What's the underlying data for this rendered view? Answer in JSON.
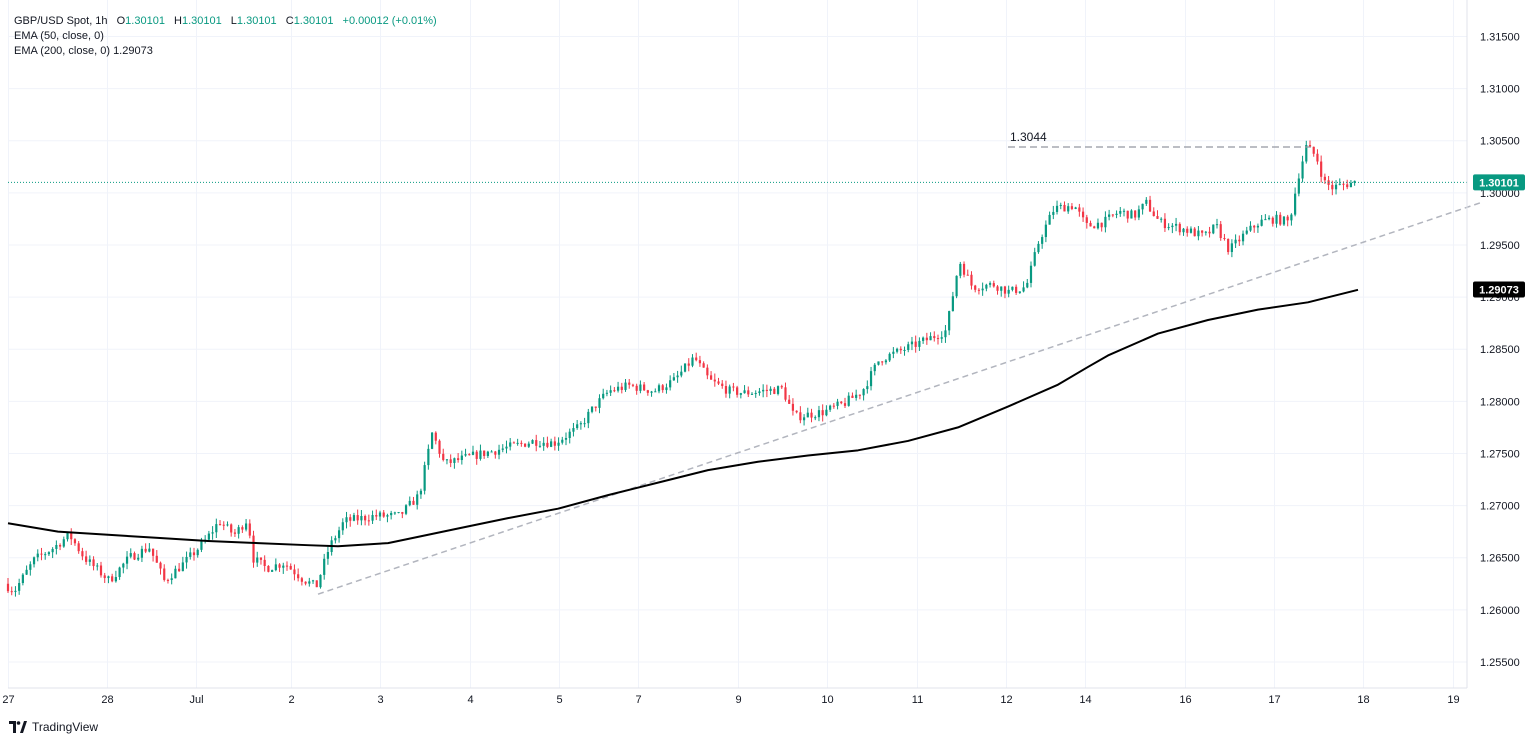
{
  "header": {
    "symbol": "GBP/USD Spot, 1h",
    "o_label": "O",
    "o_value": "1.30101",
    "h_label": "H",
    "h_value": "1.30101",
    "l_label": "L",
    "l_value": "1.30101",
    "c_label": "C",
    "c_value": "1.30101",
    "change": "+0.00012 (+0.01%)",
    "ema50_label": "EMA (50, close, 0)",
    "ema200_label": "EMA (200, close, 0)",
    "ema200_value": "1.29073"
  },
  "brand": {
    "name": "TradingView",
    "icon": "tradingview-logo-icon"
  },
  "colors": {
    "up": "#089981",
    "down": "#f23645",
    "ema": "#000000",
    "trendline": "#b2b5be",
    "price_line": "#089981",
    "grid": "#f0f3fa"
  },
  "chart_data": {
    "type": "candlestick",
    "symbol": "GBP/USD Spot",
    "interval": "1h",
    "y_range": [
      1.2525,
      1.3185
    ],
    "y_ticks": [
      "1.25500",
      "1.26000",
      "1.26500",
      "1.27000",
      "1.27500",
      "1.28000",
      "1.28500",
      "1.29000",
      "1.29500",
      "1.30000",
      "1.30500",
      "1.31000",
      "1.31500"
    ],
    "x_ticks": [
      {
        "label": "27",
        "t": 0.5
      },
      {
        "label": "28",
        "t": 99.5
      },
      {
        "label": "Jul",
        "t": 188.5
      },
      {
        "label": "2",
        "t": 283.5
      },
      {
        "label": "3",
        "t": 372.5
      },
      {
        "label": "4",
        "t": 462.5
      },
      {
        "label": "5",
        "t": 551.5
      },
      {
        "label": "7",
        "t": 630.5
      },
      {
        "label": "9",
        "t": 730.5
      },
      {
        "label": "10",
        "t": 819.5
      },
      {
        "label": "11",
        "t": 909.5
      },
      {
        "label": "12",
        "t": 998.5
      },
      {
        "label": "14",
        "t": 1077.5
      },
      {
        "label": "16",
        "t": 1177.5
      },
      {
        "label": "17",
        "t": 1266.5
      },
      {
        "label": "18",
        "t": 1355.5
      },
      {
        "label": "19",
        "t": 1445.5
      }
    ],
    "last_price": {
      "value": 1.30101,
      "label": "1.30101"
    },
    "ema200_last": {
      "value": 1.29073,
      "label": "1.29073"
    },
    "resistance": {
      "value": 1.3044,
      "label": "1.3044",
      "t_start": 1000,
      "t_end": 1303
    },
    "trendline": {
      "t_start": 310,
      "v_start": 1.2615,
      "t_end": 1474,
      "v_end": 1.2991
    },
    "price_path": [
      [
        0,
        1.2625
      ],
      [
        10,
        1.2618
      ],
      [
        30,
        1.2648
      ],
      [
        50,
        1.266
      ],
      [
        65,
        1.2672
      ],
      [
        80,
        1.265
      ],
      [
        105,
        1.2628
      ],
      [
        125,
        1.265
      ],
      [
        145,
        1.266
      ],
      [
        160,
        1.2628
      ],
      [
        180,
        1.2645
      ],
      [
        200,
        1.2665
      ],
      [
        215,
        1.2685
      ],
      [
        230,
        1.2672
      ],
      [
        244,
        1.2688
      ],
      [
        248,
        1.265
      ],
      [
        262,
        1.264
      ],
      [
        280,
        1.2645
      ],
      [
        298,
        1.263
      ],
      [
        312,
        1.2622
      ],
      [
        325,
        1.266
      ],
      [
        340,
        1.2685
      ],
      [
        370,
        1.269
      ],
      [
        395,
        1.269
      ],
      [
        415,
        1.271
      ],
      [
        428,
        1.277
      ],
      [
        440,
        1.274
      ],
      [
        470,
        1.2748
      ],
      [
        500,
        1.2755
      ],
      [
        530,
        1.2762
      ],
      [
        550,
        1.276
      ],
      [
        575,
        1.2775
      ],
      [
        590,
        1.2795
      ],
      [
        605,
        1.281
      ],
      [
        625,
        1.2815
      ],
      [
        650,
        1.281
      ],
      [
        670,
        1.282
      ],
      [
        690,
        1.2842
      ],
      [
        705,
        1.282
      ],
      [
        725,
        1.281
      ],
      [
        740,
        1.2808
      ],
      [
        760,
        1.281
      ],
      [
        778,
        1.2812
      ],
      [
        790,
        1.2785
      ],
      [
        820,
        1.279
      ],
      [
        840,
        1.2798
      ],
      [
        858,
        1.281
      ],
      [
        875,
        1.284
      ],
      [
        900,
        1.285
      ],
      [
        920,
        1.2858
      ],
      [
        942,
        1.2868
      ],
      [
        955,
        1.2935
      ],
      [
        968,
        1.291
      ],
      [
        990,
        1.2912
      ],
      [
        1005,
        1.2905
      ],
      [
        1022,
        1.291
      ],
      [
        1035,
        1.2955
      ],
      [
        1050,
        1.2985
      ],
      [
        1070,
        1.2988
      ],
      [
        1082,
        1.2968
      ],
      [
        1100,
        1.2972
      ],
      [
        1115,
        1.2982
      ],
      [
        1130,
        1.2978
      ],
      [
        1142,
        1.299
      ],
      [
        1155,
        1.2972
      ],
      [
        1180,
        1.2965
      ],
      [
        1200,
        1.2958
      ],
      [
        1212,
        1.2968
      ],
      [
        1225,
        1.2945
      ],
      [
        1240,
        1.296
      ],
      [
        1255,
        1.2972
      ],
      [
        1270,
        1.2975
      ],
      [
        1285,
        1.2972
      ],
      [
        1295,
        1.302
      ],
      [
        1302,
        1.3044
      ],
      [
        1312,
        1.3035
      ],
      [
        1320,
        1.301
      ],
      [
        1328,
        1.3005
      ],
      [
        1340,
        1.3008
      ],
      [
        1350,
        1.301
      ]
    ],
    "ema200_path": [
      [
        0,
        1.2683
      ],
      [
        50,
        1.2675
      ],
      [
        100,
        1.2672
      ],
      [
        150,
        1.2669
      ],
      [
        200,
        1.2666
      ],
      [
        250,
        1.2664
      ],
      [
        300,
        1.2662
      ],
      [
        330,
        1.2661
      ],
      [
        380,
        1.2664
      ],
      [
        410,
        1.267
      ],
      [
        450,
        1.2678
      ],
      [
        500,
        1.2688
      ],
      [
        550,
        1.2697
      ],
      [
        600,
        1.271
      ],
      [
        650,
        1.2722
      ],
      [
        700,
        1.2734
      ],
      [
        750,
        1.2742
      ],
      [
        800,
        1.2748
      ],
      [
        850,
        1.2753
      ],
      [
        900,
        1.2762
      ],
      [
        950,
        1.2775
      ],
      [
        1000,
        1.2795
      ],
      [
        1050,
        1.2816
      ],
      [
        1080,
        1.2833
      ],
      [
        1100,
        1.2844
      ],
      [
        1150,
        1.2865
      ],
      [
        1200,
        1.2878
      ],
      [
        1250,
        1.2888
      ],
      [
        1300,
        1.2895
      ],
      [
        1350,
        1.2907
      ]
    ]
  }
}
